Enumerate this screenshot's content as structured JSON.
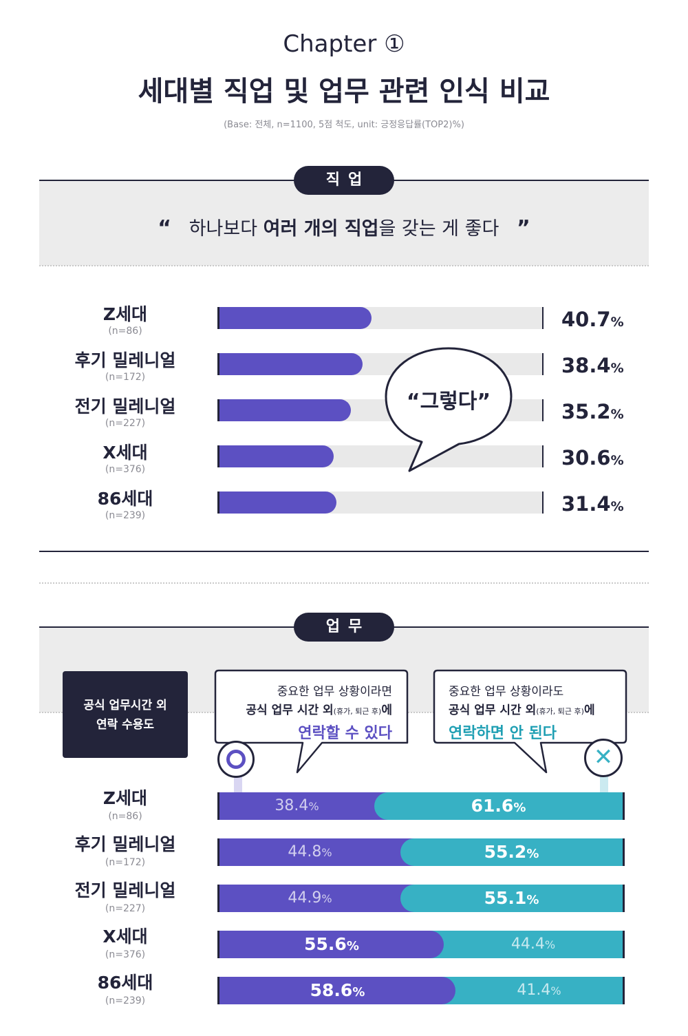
{
  "header": {
    "chapter": "Chapter ①",
    "title": "세대별 직업 및 업무 관련 인식 비교",
    "base": "(Base: 전체, n=1100, 5점 척도, unit: 긍정응답률(TOP2)%)"
  },
  "section1": {
    "pill": "직업",
    "quote_open": "“",
    "quote_pre": "하나보다 ",
    "quote_bold": "여러 개의 직업",
    "quote_post": "을 갖는 게 좋다",
    "quote_close": "”",
    "bubble": "“그렇다”"
  },
  "section2": {
    "pill": "업무",
    "box_line1": "공식 업무시간 외",
    "box_line2": "연락 수용도",
    "left_callout": {
      "line1": "중요한 업무 상황이라면",
      "line2_main": "공식 업무 시간 외",
      "line2_paren": "(휴가, 퇴근 후)",
      "line2_tail": "에",
      "line3": "연락할 수 있다",
      "symbol": "O"
    },
    "right_callout": {
      "line1": "중요한 업무 상황이라도",
      "line2_main": "공식 업무 시간 외",
      "line2_paren": "(휴가, 퇴근 후)",
      "line2_tail": "에",
      "line3": "연락하면 안 된다",
      "symbol": "✕"
    }
  },
  "colors": {
    "dark": "#23243a",
    "purple": "#5c50c2",
    "teal": "#37b1c4",
    "track": "#e9e9e9",
    "band": "#ececec"
  },
  "chart_data": [
    {
      "type": "bar",
      "orientation": "horizontal",
      "title": "하나보다 여러 개의 직업을 갖는 게 좋다",
      "unit": "%",
      "xlim": [
        0,
        100
      ],
      "categories": [
        "Z세대",
        "후기 밀레니얼",
        "전기 밀레니얼",
        "X세대",
        "86세대"
      ],
      "category_notes": [
        "(n=86)",
        "(n=172)",
        "(n=227)",
        "(n=376)",
        "(n=239)"
      ],
      "series": [
        {
          "name": "“그렇다”",
          "values": [
            40.7,
            38.4,
            35.2,
            30.6,
            31.4
          ]
        }
      ],
      "labels": [
        "40.7",
        "38.4",
        "35.2",
        "30.6",
        "31.4"
      ]
    },
    {
      "type": "bar",
      "orientation": "horizontal",
      "stacked": true,
      "title": "공식 업무시간 외 연락 수용도",
      "unit": "%",
      "xlim": [
        0,
        100
      ],
      "categories": [
        "Z세대",
        "후기 밀레니얼",
        "전기 밀레니얼",
        "X세대",
        "86세대"
      ],
      "category_notes": [
        "(n=86)",
        "(n=172)",
        "(n=227)",
        "(n=376)",
        "(n=239)"
      ],
      "series": [
        {
          "name": "연락할 수 있다",
          "values": [
            38.4,
            44.8,
            44.9,
            55.6,
            58.6
          ],
          "labels": [
            "38.4",
            "44.8",
            "44.9",
            "55.6",
            "58.6"
          ]
        },
        {
          "name": "연락하면 안 된다",
          "values": [
            61.6,
            55.2,
            55.1,
            44.4,
            41.4
          ],
          "labels": [
            "61.6",
            "55.2",
            "55.1",
            "44.4",
            "41.4"
          ]
        }
      ]
    }
  ]
}
